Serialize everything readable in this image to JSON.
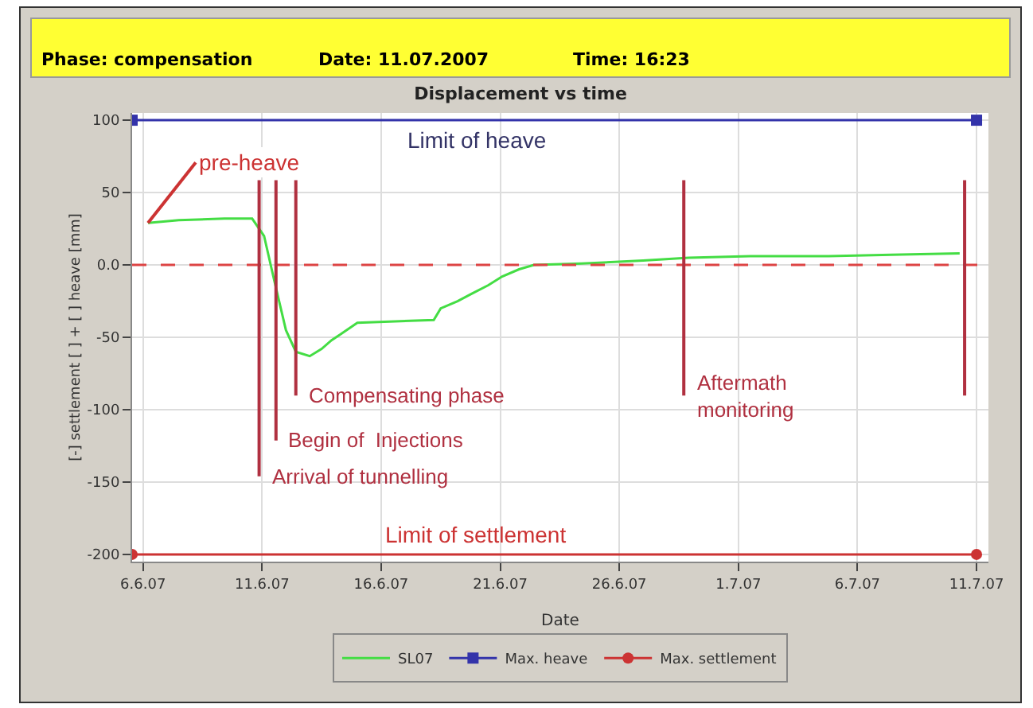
{
  "chart_data": {
    "type": "line",
    "title": "Displacement vs time",
    "annotations": [
      "Phase: compensation",
      "Date: 11.07.2007",
      "Time: 16:23",
      {
        "text": "pre-heave",
        "x": "2007-06-06T05:00",
        "y": 29
      },
      {
        "text": "Limit of heave",
        "x": "2007-06-20T00:00",
        "y": 100
      },
      {
        "text": "Limit of settlement",
        "x": "2007-06-20T00:00",
        "y": -200
      }
    ],
    "xlabel": "Date",
    "ylabel": "[-] settlement [ ] + [ ] heave [mm]",
    "xlim": [
      "2007-06-05T13:00",
      "2007-07-11T12:00"
    ],
    "xticks": [
      {
        "value": "2007-06-06",
        "label": "6.6.07"
      },
      {
        "value": "2007-06-11",
        "label": "11.6.07"
      },
      {
        "value": "2007-06-16",
        "label": "16.6.07"
      },
      {
        "value": "2007-06-21",
        "label": "21.6.07"
      },
      {
        "value": "2007-06-26",
        "label": "26.6.07"
      },
      {
        "value": "2007-07-01",
        "label": "1.7.07"
      },
      {
        "value": "2007-07-06",
        "label": "6.7.07"
      },
      {
        "value": "2007-07-11",
        "label": "11.7.07"
      }
    ],
    "ylim": [
      -205,
      105
    ],
    "yticks": [
      100,
      50,
      {
        "value": 0,
        "label": "0.0"
      },
      -50,
      -100,
      -150,
      -200
    ],
    "grid": true,
    "legend": "bottom",
    "series": [
      {
        "name": "SL07",
        "color": "#44dd44",
        "marker": "none",
        "x": [
          "2007-06-06T05:00",
          "2007-06-07T12:00",
          "2007-06-09T10:00",
          "2007-06-10T14:00",
          "2007-06-11T02:00",
          "2007-06-11T12:00",
          "2007-06-12T00:00",
          "2007-06-12T10:00",
          "2007-06-13T00:00",
          "2007-06-13T12:00",
          "2007-06-13T22:00",
          "2007-06-14T07:00",
          "2007-06-15T00:00",
          "2007-06-16T14:00",
          "2007-06-18T05:00",
          "2007-06-18T12:00",
          "2007-06-19T05:00",
          "2007-06-19T19:00",
          "2007-06-20T12:00",
          "2007-06-21T02:00",
          "2007-06-21T19:00",
          "2007-06-22T10:00",
          "2007-06-24T10:00",
          "2007-06-27T00:00",
          "2007-06-28T22:00",
          "2007-07-01T12:00",
          "2007-07-04T19:00",
          "2007-07-07T10:00",
          "2007-07-10T07:00"
        ],
        "values": [
          29,
          31,
          32,
          32,
          20,
          -10,
          -45,
          -60,
          -63,
          -58,
          -52,
          -48,
          -40,
          -39,
          -38,
          -30,
          -25,
          -20,
          -14,
          -8,
          -3,
          0,
          1,
          3,
          5,
          6,
          6,
          7,
          8
        ]
      },
      {
        "name": "Max. heave",
        "color": "#3333aa",
        "marker": "square",
        "x": [
          "2007-06-05T13:00",
          "2007-07-11T00:00"
        ],
        "values": [
          100,
          100
        ]
      },
      {
        "name": "Max. settlement",
        "color": "#cc3333",
        "marker": "circle",
        "x": [
          "2007-06-05T13:00",
          "2007-07-11T00:00"
        ],
        "values": [
          -200,
          -200
        ]
      }
    ],
    "ref_lines": [
      {
        "axis": "y",
        "value": 0,
        "color": "#dd4444",
        "line_style": "dashed"
      },
      {
        "axis": "x",
        "value": "2007-06-12T10:00",
        "label": "Compensating phase",
        "color": "#b03040"
      },
      {
        "axis": "x",
        "value": "2007-06-11T14:00",
        "label": "Begin of  Injections",
        "color": "#b03040"
      },
      {
        "axis": "x",
        "value": "2007-06-10T21:00",
        "label": "Arrival of tunnelling",
        "color": "#b03040"
      },
      {
        "axis": "x",
        "value": "2007-06-28T17:00",
        "label": "Aftermath\nmonitoring",
        "color": "#b03040"
      },
      {
        "axis": "x",
        "value": "2007-07-10T12:00",
        "color": "#b03040"
      }
    ]
  }
}
